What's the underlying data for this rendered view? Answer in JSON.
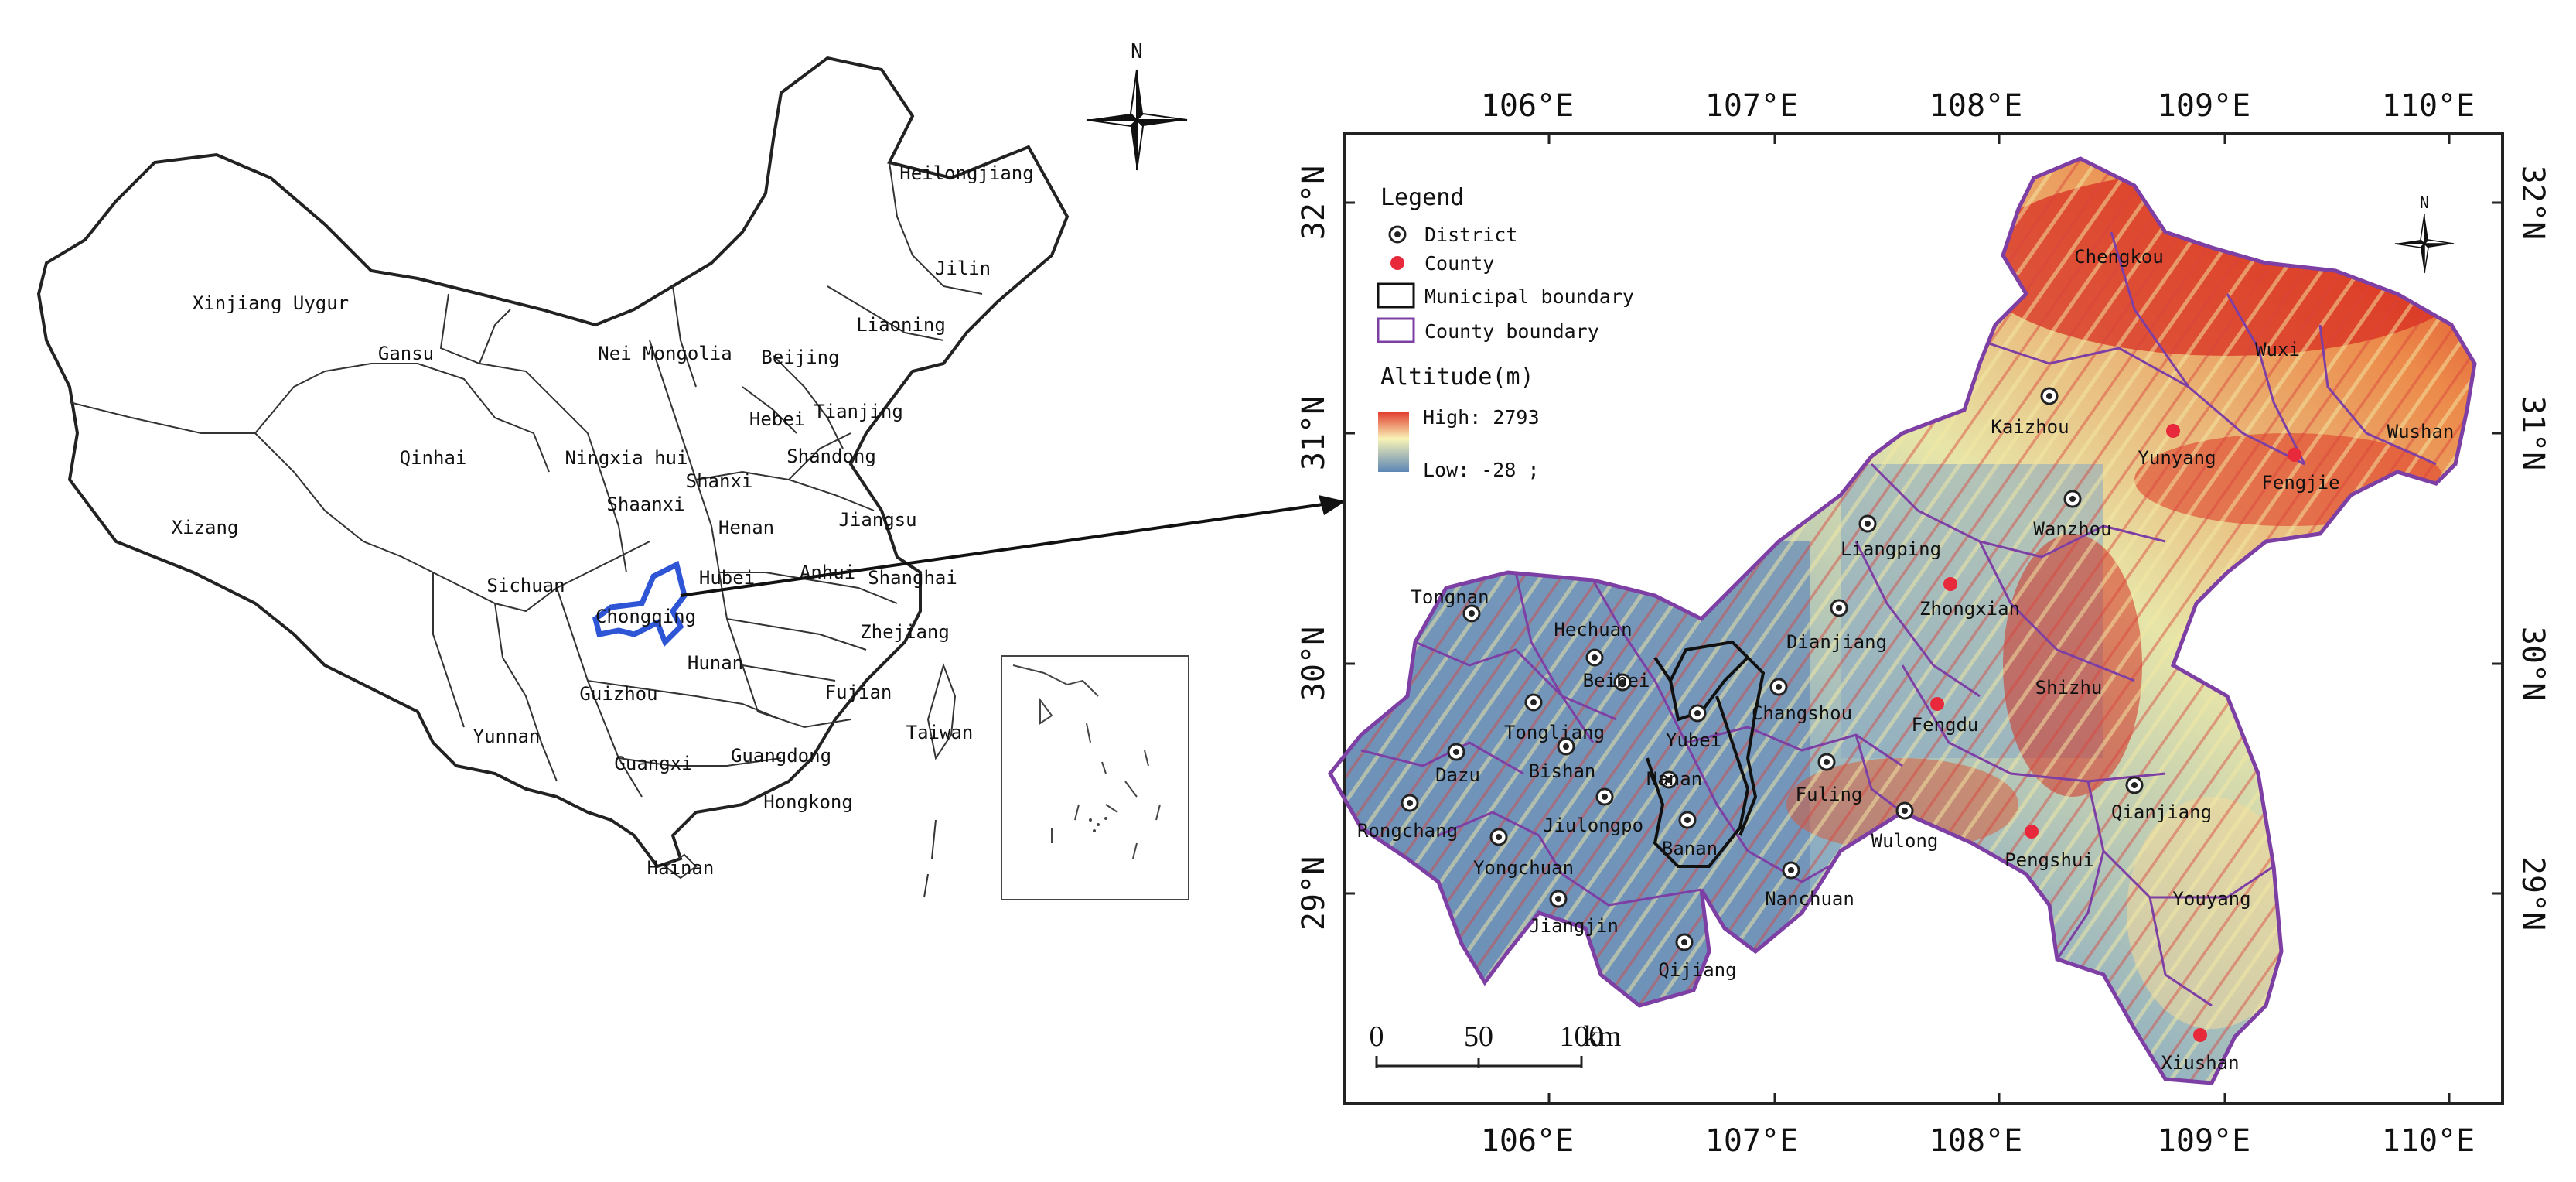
{
  "china_map": {
    "provinces": [
      {
        "name": "Heilongjiang"
      },
      {
        "name": "Jilin"
      },
      {
        "name": "Liaoning"
      },
      {
        "name": "Xinjiang Uygur"
      },
      {
        "name": "Gansu"
      },
      {
        "name": "Nei Mongolia"
      },
      {
        "name": "Beijing"
      },
      {
        "name": "Tianjing"
      },
      {
        "name": "Hebei"
      },
      {
        "name": "Shandong"
      },
      {
        "name": "Qinhai"
      },
      {
        "name": "Ningxia hui"
      },
      {
        "name": "Shanxi"
      },
      {
        "name": "Xizang"
      },
      {
        "name": "Shaanxi"
      },
      {
        "name": "Henan"
      },
      {
        "name": "Jiangsu"
      },
      {
        "name": "Sichuan"
      },
      {
        "name": "Hubei"
      },
      {
        "name": "Anhui"
      },
      {
        "name": "Shanghai"
      },
      {
        "name": "Chongqing"
      },
      {
        "name": "Zhejiang"
      },
      {
        "name": "Hunan"
      },
      {
        "name": "Guizhou"
      },
      {
        "name": "Fujian"
      },
      {
        "name": "Yunnan"
      },
      {
        "name": "Taiwan"
      },
      {
        "name": "Guangxi"
      },
      {
        "name": "Guangdong"
      },
      {
        "name": "Hongkong"
      },
      {
        "name": "Hainan"
      }
    ],
    "north_label": "N"
  },
  "detail_map": {
    "top_lon_labels": [
      "106°E",
      "107°E",
      "108°E",
      "109°E",
      "110°E"
    ],
    "bottom_lon_labels": [
      "106°E",
      "107°E",
      "108°E",
      "109°E",
      "110°E"
    ],
    "left_lat_labels": [
      "32°N",
      "31°N",
      "30°N",
      "29°N"
    ],
    "right_lat_labels": [
      "32°N",
      "31°N",
      "30°N",
      "29°N"
    ],
    "north_label": "N",
    "legend": {
      "title": "Legend",
      "items": [
        "District",
        "County",
        "Municipal boundary",
        "County boundary"
      ],
      "altitude_title": "Altitude(m)",
      "high_label": "High: 2793",
      "low_label": "Low: -28 ;"
    },
    "scale": {
      "ticks": [
        "0",
        "50",
        "100"
      ],
      "unit": "km"
    },
    "districts": [
      {
        "name": "Kaizhou",
        "type": "district"
      },
      {
        "name": "Wanzhou",
        "type": "district"
      },
      {
        "name": "Liangping",
        "type": "district"
      },
      {
        "name": "Dianjiang",
        "type": "district"
      },
      {
        "name": "Tongnan",
        "type": "district"
      },
      {
        "name": "Hechuan",
        "type": "district"
      },
      {
        "name": "Beibei",
        "type": "district"
      },
      {
        "name": "Yubei",
        "type": "district"
      },
      {
        "name": "Changshou",
        "type": "district"
      },
      {
        "name": "Tongliang",
        "type": "district"
      },
      {
        "name": "Dazu",
        "type": "district"
      },
      {
        "name": "Bishan",
        "type": "district"
      },
      {
        "name": "Nanan",
        "type": "district"
      },
      {
        "name": "Fuling",
        "type": "district"
      },
      {
        "name": "Rongchang",
        "type": "district"
      },
      {
        "name": "Jiulongpo",
        "type": "district"
      },
      {
        "name": "Banan",
        "type": "district"
      },
      {
        "name": "Wulong",
        "type": "district"
      },
      {
        "name": "Qianjiang",
        "type": "district"
      },
      {
        "name": "Yongchuan",
        "type": "district"
      },
      {
        "name": "Nanchuan",
        "type": "district"
      },
      {
        "name": "Jiangjin",
        "type": "district"
      },
      {
        "name": "Qijiang",
        "type": "district"
      },
      {
        "name": "Chengkou",
        "type": "county"
      },
      {
        "name": "Wuxi",
        "type": "county"
      },
      {
        "name": "Yunyang",
        "type": "county"
      },
      {
        "name": "Fengjie",
        "type": "county"
      },
      {
        "name": "Wushan",
        "type": "county"
      },
      {
        "name": "Zhongxian",
        "type": "county"
      },
      {
        "name": "Shizhu",
        "type": "county"
      },
      {
        "name": "Fengdu",
        "type": "county"
      },
      {
        "name": "Pengshui",
        "type": "county"
      },
      {
        "name": "Youyang",
        "type": "county"
      },
      {
        "name": "Xiushan",
        "type": "county"
      }
    ]
  },
  "colors": {
    "high": "#d7191c",
    "mid": "#ffffbf",
    "low": "#5e87b8",
    "district_marker": "#222222",
    "county_marker": "#e8293b",
    "county_boundary": "#7e3fa5",
    "chongqing_outline": "#2e55d6"
  }
}
